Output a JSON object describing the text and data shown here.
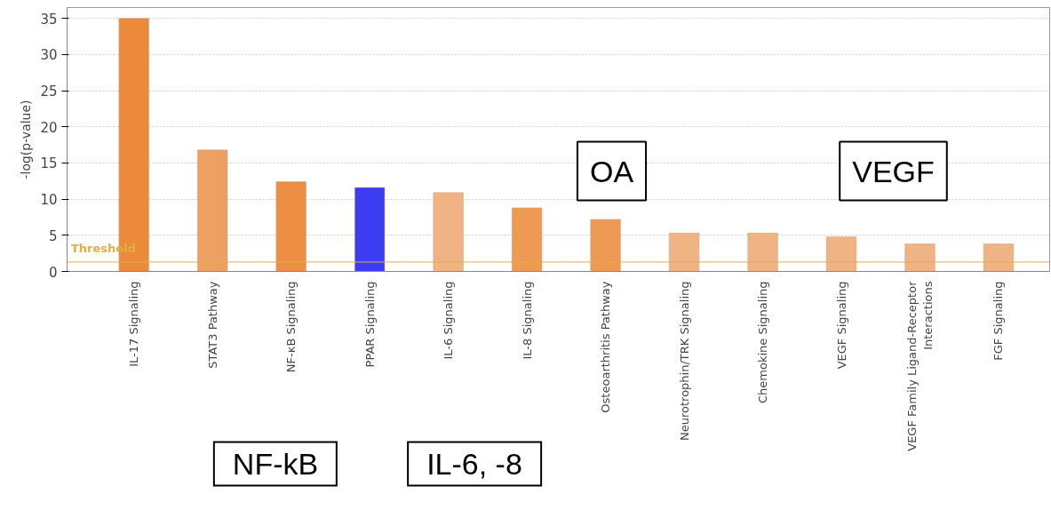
{
  "chart_data": {
    "type": "bar",
    "ylabel": "-log(p-value)",
    "categories": [
      "IL-17 Signaling",
      "STAT3 Pathway",
      "NF-κB Signaling",
      "PPAR Signaling",
      "IL-6 Signaling",
      "IL-8 Signaling",
      "Osteoarthritis Pathway",
      "Neurotrophin/TRK Signaling",
      "Chemokine Signaling",
      "VEGF Signaling",
      "VEGF Family Ligand-Receptor Interactions",
      "FGF Signaling"
    ],
    "values": [
      35,
      16.8,
      12.4,
      11.6,
      10.9,
      8.8,
      7.2,
      5.3,
      5.3,
      4.8,
      3.8,
      3.8
    ],
    "colors": [
      "#ec8a3c",
      "#eea063",
      "#ec8f45",
      "#3c3cf2",
      "#f0b384",
      "#ee9a55",
      "#ee9a55",
      "#f0b384",
      "#f0b384",
      "#f0b384",
      "#f0b384",
      "#f0b384"
    ],
    "ylim": [
      0,
      36.5
    ],
    "yticks": [
      0,
      5,
      10,
      15,
      20,
      25,
      30,
      35
    ],
    "grid": "y",
    "ref_lines": [
      {
        "axis": "y",
        "value": 1.3,
        "label": "Threshold",
        "color": "#e0b040"
      }
    ],
    "annotations": [
      "NF-kB",
      "IL-6, -8",
      "OA",
      "VEGF"
    ]
  }
}
